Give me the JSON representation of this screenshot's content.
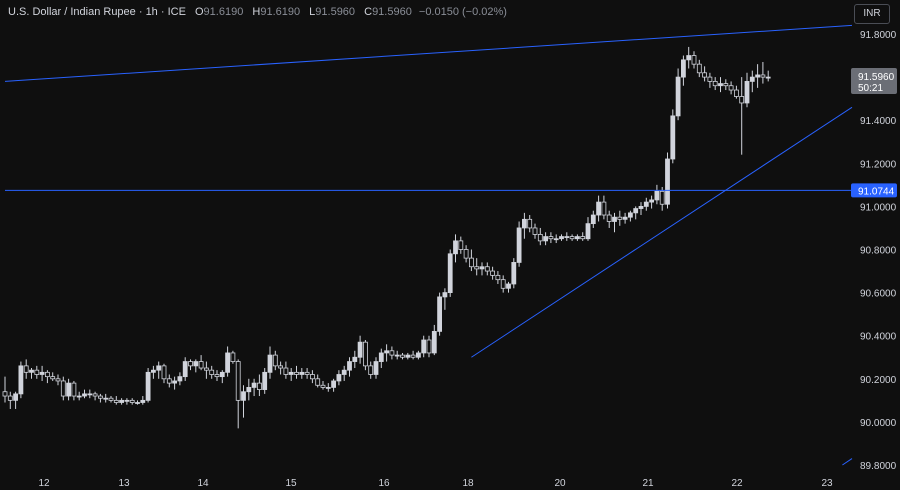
{
  "header": {
    "symbol": "U.S. Dollar / Indian Rupee · 1h · ICE",
    "open_label": "O",
    "open": "91.6190",
    "high_label": "H",
    "high": "91.6190",
    "low_label": "L",
    "low": "91.5960",
    "close_label": "C",
    "close": "91.5960",
    "change": "−0.0150 (−0.02%)"
  },
  "currency_button": "INR",
  "colors": {
    "background": "#0f0f0f",
    "trendline": "#2962ff",
    "candle_up": "#d1d4dc",
    "candle_down": "#d1d4dc",
    "price_tag": "#6b6e76",
    "level_tag": "#2962ff"
  },
  "chart_data": {
    "type": "candlestick",
    "y_ticks": [
      "91.8000",
      "91.6000",
      "91.4000",
      "91.2000",
      "91.0000",
      "90.8000",
      "90.6000",
      "90.4000",
      "90.2000",
      "90.0000",
      "89.8000"
    ],
    "x_ticks": [
      "12",
      "13",
      "14",
      "15",
      "16",
      "18",
      "20",
      "21",
      "22",
      "23"
    ],
    "ylim": [
      89.77,
      91.88
    ],
    "current_price": "91.5960",
    "countdown": "50:21",
    "horizontal_level": "91.0744",
    "grid": false,
    "trendlines": [
      {
        "name": "upper channel",
        "from": {
          "x": 0,
          "y": 91.58
        },
        "to": {
          "x": 197,
          "y": 91.84
        }
      },
      {
        "name": "horizontal",
        "from": {
          "x": 0,
          "y": 91.0744
        },
        "to": {
          "x": 197,
          "y": 91.0744
        }
      },
      {
        "name": "rising support",
        "from": {
          "x": 88,
          "y": 90.3
        },
        "to": {
          "x": 197,
          "y": 91.46
        }
      },
      {
        "name": "lower channel",
        "from": {
          "x": 158,
          "y": 89.8
        },
        "to": {
          "x": 197,
          "y": 89.83
        }
      }
    ],
    "candles": [
      [
        90.14,
        90.21,
        90.09,
        90.12
      ],
      [
        90.12,
        90.14,
        90.06,
        90.1
      ],
      [
        90.1,
        90.14,
        90.06,
        90.13
      ],
      [
        90.13,
        90.28,
        90.11,
        90.26
      ],
      [
        90.26,
        90.29,
        90.2,
        90.23
      ],
      [
        90.23,
        90.25,
        90.2,
        90.24
      ],
      [
        90.24,
        90.26,
        90.2,
        90.22
      ],
      [
        90.22,
        90.26,
        90.19,
        90.23
      ],
      [
        90.23,
        90.24,
        90.18,
        90.21
      ],
      [
        90.21,
        90.23,
        90.19,
        90.2
      ],
      [
        90.2,
        90.22,
        90.17,
        90.19
      ],
      [
        90.19,
        90.21,
        90.1,
        90.12
      ],
      [
        90.12,
        90.2,
        90.1,
        90.18
      ],
      [
        90.18,
        90.19,
        90.1,
        90.12
      ],
      [
        90.12,
        90.14,
        90.1,
        90.12
      ],
      [
        90.12,
        90.15,
        90.11,
        90.13
      ],
      [
        90.13,
        90.15,
        90.11,
        90.13
      ],
      [
        90.13,
        90.14,
        90.1,
        90.12
      ],
      [
        90.12,
        90.13,
        90.09,
        90.11
      ],
      [
        90.11,
        90.13,
        90.09,
        90.11
      ],
      [
        90.11,
        90.12,
        90.09,
        90.1
      ],
      [
        90.1,
        90.12,
        90.08,
        90.09
      ],
      [
        90.09,
        90.11,
        90.08,
        90.1
      ],
      [
        90.1,
        90.11,
        90.08,
        90.1
      ],
      [
        90.1,
        90.11,
        90.08,
        90.09
      ],
      [
        90.09,
        90.1,
        90.08,
        90.09
      ],
      [
        90.09,
        90.12,
        90.08,
        90.1
      ],
      [
        90.1,
        90.25,
        90.09,
        90.23
      ],
      [
        90.23,
        90.26,
        90.2,
        90.24
      ],
      [
        90.24,
        90.28,
        90.2,
        90.26
      ],
      [
        90.26,
        90.27,
        90.18,
        90.2
      ],
      [
        90.2,
        90.22,
        90.16,
        90.18
      ],
      [
        90.18,
        90.21,
        90.15,
        90.19
      ],
      [
        90.19,
        90.23,
        90.17,
        90.21
      ],
      [
        90.21,
        90.3,
        90.19,
        90.28
      ],
      [
        90.28,
        90.29,
        90.24,
        90.26
      ],
      [
        90.26,
        90.29,
        90.23,
        90.28
      ],
      [
        90.28,
        90.31,
        90.24,
        90.25
      ],
      [
        90.25,
        90.28,
        90.2,
        90.24
      ],
      [
        90.24,
        90.26,
        90.2,
        90.22
      ],
      [
        90.22,
        90.24,
        90.19,
        90.21
      ],
      [
        90.21,
        90.24,
        90.18,
        90.23
      ],
      [
        90.23,
        90.35,
        90.21,
        90.32
      ],
      [
        90.32,
        90.33,
        90.27,
        90.28
      ],
      [
        90.28,
        90.29,
        89.97,
        90.1
      ],
      [
        90.1,
        90.17,
        90.02,
        90.14
      ],
      [
        90.14,
        90.2,
        90.1,
        90.16
      ],
      [
        90.16,
        90.2,
        90.12,
        90.18
      ],
      [
        90.18,
        90.22,
        90.12,
        90.15
      ],
      [
        90.15,
        90.25,
        90.13,
        90.23
      ],
      [
        90.23,
        90.35,
        90.2,
        90.31
      ],
      [
        90.31,
        90.33,
        90.24,
        90.26
      ],
      [
        90.26,
        90.28,
        90.22,
        90.25
      ],
      [
        90.25,
        90.28,
        90.2,
        90.22
      ],
      [
        90.22,
        90.25,
        90.19,
        90.23
      ],
      [
        90.23,
        90.26,
        90.2,
        90.22
      ],
      [
        90.22,
        90.25,
        90.2,
        90.23
      ],
      [
        90.23,
        90.25,
        90.2,
        90.22
      ],
      [
        90.22,
        90.24,
        90.18,
        90.2
      ],
      [
        90.2,
        90.22,
        90.16,
        90.17
      ],
      [
        90.17,
        90.19,
        90.15,
        90.16
      ],
      [
        90.16,
        90.18,
        90.14,
        90.16
      ],
      [
        90.16,
        90.2,
        90.14,
        90.19
      ],
      [
        90.19,
        90.24,
        90.17,
        90.22
      ],
      [
        90.22,
        90.26,
        90.19,
        90.24
      ],
      [
        90.24,
        90.3,
        90.21,
        90.28
      ],
      [
        90.28,
        90.33,
        90.25,
        90.3
      ],
      [
        90.3,
        90.4,
        90.27,
        90.37
      ],
      [
        90.37,
        90.38,
        90.24,
        90.26
      ],
      [
        90.26,
        90.28,
        90.2,
        90.22
      ],
      [
        90.22,
        90.3,
        90.2,
        90.28
      ],
      [
        90.28,
        90.34,
        90.25,
        90.32
      ],
      [
        90.32,
        90.36,
        90.28,
        90.33
      ],
      [
        90.33,
        90.35,
        90.29,
        90.31
      ],
      [
        90.31,
        90.33,
        90.29,
        90.31
      ],
      [
        90.31,
        90.32,
        90.29,
        90.3
      ],
      [
        90.3,
        90.32,
        90.29,
        90.31
      ],
      [
        90.31,
        90.33,
        90.29,
        90.3
      ],
      [
        90.3,
        90.33,
        90.29,
        90.32
      ],
      [
        90.32,
        90.4,
        90.3,
        90.38
      ],
      [
        90.38,
        90.4,
        90.3,
        90.32
      ],
      [
        90.32,
        90.45,
        90.31,
        90.42
      ],
      [
        90.42,
        90.6,
        90.4,
        90.58
      ],
      [
        90.58,
        90.62,
        90.52,
        90.6
      ],
      [
        90.6,
        90.8,
        90.58,
        90.78
      ],
      [
        90.78,
        90.87,
        90.74,
        90.84
      ],
      [
        90.84,
        90.86,
        90.78,
        90.8
      ],
      [
        90.8,
        90.82,
        90.74,
        90.76
      ],
      [
        90.76,
        90.8,
        90.7,
        90.72
      ],
      [
        90.72,
        90.76,
        90.68,
        90.71
      ],
      [
        90.71,
        90.74,
        90.68,
        90.72
      ],
      [
        90.72,
        90.74,
        90.68,
        90.7
      ],
      [
        90.7,
        90.72,
        90.66,
        90.68
      ],
      [
        90.68,
        90.7,
        90.64,
        90.66
      ],
      [
        90.66,
        90.68,
        90.6,
        90.62
      ],
      [
        90.62,
        90.65,
        90.6,
        90.64
      ],
      [
        90.64,
        90.76,
        90.62,
        90.74
      ],
      [
        90.74,
        90.93,
        90.72,
        90.9
      ],
      [
        90.9,
        90.97,
        90.85,
        90.94
      ],
      [
        90.94,
        90.96,
        90.88,
        90.9
      ],
      [
        90.9,
        90.92,
        90.85,
        90.87
      ],
      [
        90.87,
        90.9,
        90.82,
        90.84
      ],
      [
        90.84,
        90.88,
        90.82,
        90.86
      ],
      [
        90.86,
        90.88,
        90.83,
        90.85
      ],
      [
        90.85,
        90.87,
        90.83,
        90.85
      ],
      [
        90.85,
        90.87,
        90.84,
        90.86
      ],
      [
        90.86,
        90.88,
        90.84,
        90.86
      ],
      [
        90.86,
        90.87,
        90.84,
        90.85
      ],
      [
        90.85,
        90.87,
        90.84,
        90.86
      ],
      [
        90.86,
        90.88,
        90.84,
        90.85
      ],
      [
        90.85,
        90.95,
        90.84,
        90.92
      ],
      [
        90.92,
        90.98,
        90.9,
        90.96
      ],
      [
        90.96,
        91.05,
        90.93,
        91.02
      ],
      [
        91.02,
        91.05,
        90.94,
        90.96
      ],
      [
        90.96,
        90.98,
        90.9,
        90.93
      ],
      [
        90.93,
        90.97,
        90.88,
        90.95
      ],
      [
        90.95,
        90.98,
        90.91,
        90.94
      ],
      [
        90.94,
        90.97,
        90.92,
        90.95
      ],
      [
        90.95,
        90.98,
        90.93,
        90.97
      ],
      [
        90.97,
        91.0,
        90.94,
        90.99
      ],
      [
        90.99,
        91.02,
        90.96,
        91.0
      ],
      [
        91.0,
        91.04,
        90.98,
        91.02
      ],
      [
        91.02,
        91.05,
        90.99,
        91.03
      ],
      [
        91.03,
        91.1,
        91.01,
        91.07
      ],
      [
        91.07,
        91.09,
        90.98,
        91.01
      ],
      [
        91.01,
        91.25,
        90.99,
        91.22
      ],
      [
        91.22,
        91.45,
        91.2,
        91.42
      ],
      [
        91.42,
        91.64,
        91.4,
        91.6
      ],
      [
        91.6,
        91.7,
        91.56,
        91.68
      ],
      [
        91.68,
        91.74,
        91.64,
        91.7
      ],
      [
        91.7,
        91.72,
        91.64,
        91.66
      ],
      [
        91.66,
        91.68,
        91.6,
        91.62
      ],
      [
        91.62,
        91.65,
        91.58,
        91.6
      ],
      [
        91.6,
        91.62,
        91.55,
        91.58
      ],
      [
        91.58,
        91.6,
        91.54,
        91.56
      ],
      [
        91.56,
        91.6,
        91.53,
        91.57
      ],
      [
        91.57,
        91.59,
        91.54,
        91.56
      ],
      [
        91.56,
        91.58,
        91.52,
        91.54
      ],
      [
        91.54,
        91.56,
        91.5,
        91.51
      ],
      [
        91.51,
        91.6,
        91.24,
        91.48
      ],
      [
        91.48,
        91.62,
        91.46,
        91.58
      ],
      [
        91.58,
        91.63,
        91.53,
        91.6
      ],
      [
        91.6,
        91.66,
        91.55,
        91.61
      ],
      [
        91.61,
        91.67,
        91.57,
        91.6
      ],
      [
        91.6,
        91.63,
        91.58,
        91.6
      ]
    ]
  }
}
